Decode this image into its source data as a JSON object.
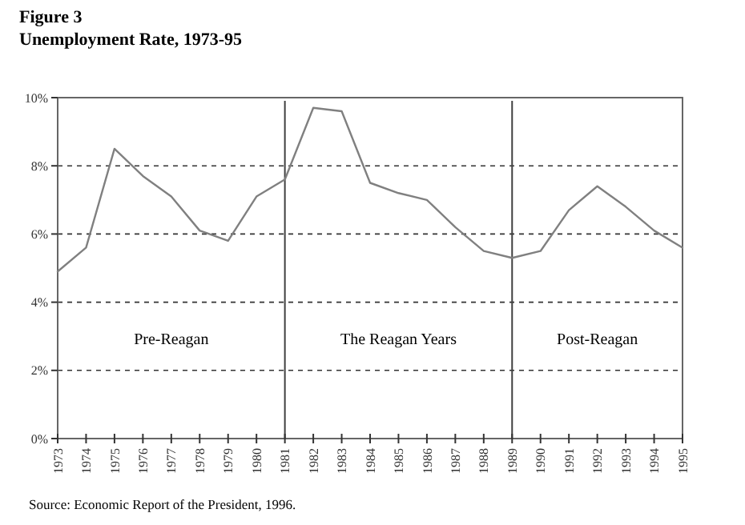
{
  "chart_data": {
    "type": "line",
    "title": "Figure 3",
    "subtitle": "Unemployment Rate, 1973-95",
    "categories": [
      "1973",
      "1974",
      "1975",
      "1976",
      "1977",
      "1978",
      "1979",
      "1980",
      "1981",
      "1982",
      "1983",
      "1984",
      "1985",
      "1986",
      "1987",
      "1988",
      "1989",
      "1990",
      "1991",
      "1992",
      "1993",
      "1994",
      "1995"
    ],
    "series": [
      {
        "color": "#808080",
        "values": [
          4.9,
          5.6,
          8.5,
          7.7,
          7.1,
          6.1,
          5.8,
          7.1,
          7.6,
          9.7,
          9.6,
          7.5,
          7.2,
          7.0,
          6.2,
          5.5,
          5.3,
          5.5,
          6.7,
          7.4,
          6.8,
          6.1,
          5.6
        ]
      }
    ],
    "ylim": [
      0,
      10
    ],
    "yticks": [
      {
        "value": 0,
        "label": "0%"
      },
      {
        "value": 2,
        "label": "2%"
      },
      {
        "value": 4,
        "label": "4%"
      },
      {
        "value": 6,
        "label": "6%"
      },
      {
        "value": 8,
        "label": "8%"
      },
      {
        "value": 10,
        "label": "10%"
      }
    ],
    "grid": "y",
    "marker": "none",
    "line_style": "solid",
    "ref_lines": [
      {
        "axis": "x",
        "value": "1981",
        "color": "#404040"
      },
      {
        "axis": "x",
        "value": "1989",
        "color": "#404040"
      }
    ],
    "annotations": [
      "Pre-Reagan",
      "The Reagan Years",
      "Post-Reagan",
      "Source: Economic Report of the President, 1996."
    ]
  }
}
